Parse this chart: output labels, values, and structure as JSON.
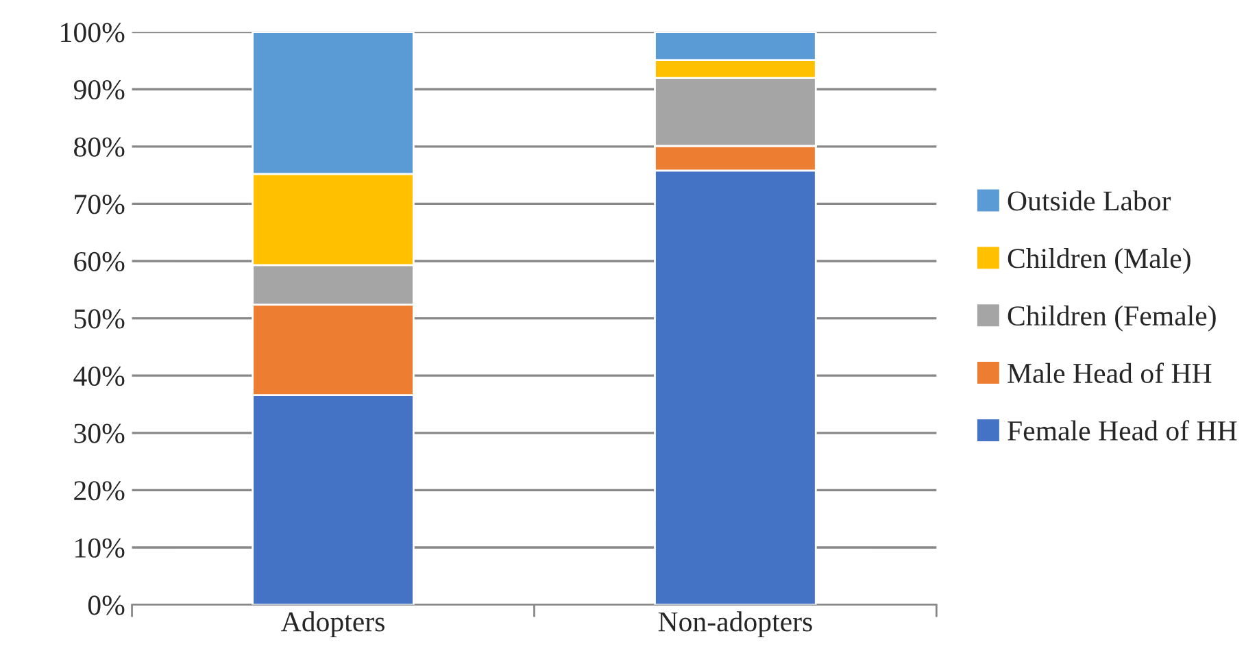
{
  "chart_data": {
    "type": "bar",
    "stacked": true,
    "categories": [
      "Adopters",
      "Non-adopters"
    ],
    "series": [
      {
        "name": "Female Head of HH",
        "color": "#4472c4",
        "values": [
          36.6,
          75.8
        ]
      },
      {
        "name": "Male Head of HH",
        "color": "#ed7d31",
        "values": [
          15.8,
          4.3
        ]
      },
      {
        "name": "Children (Female)",
        "color": "#a5a5a5",
        "values": [
          6.9,
          11.9
        ]
      },
      {
        "name": "Children (Male)",
        "color": "#ffc000",
        "values": [
          15.9,
          3.1
        ]
      },
      {
        "name": "Outside Labor",
        "color": "#5b9bd5",
        "values": [
          24.8,
          4.9
        ]
      }
    ],
    "ylim": [
      0,
      100
    ],
    "yticks": [
      {
        "value": 0,
        "label": "0%"
      },
      {
        "value": 10,
        "label": "10%"
      },
      {
        "value": 20,
        "label": "20%"
      },
      {
        "value": 30,
        "label": "30%"
      },
      {
        "value": 40,
        "label": "40%"
      },
      {
        "value": 50,
        "label": "50%"
      },
      {
        "value": 60,
        "label": "60%"
      },
      {
        "value": 70,
        "label": "70%"
      },
      {
        "value": 80,
        "label": "80%"
      },
      {
        "value": 90,
        "label": "90%"
      },
      {
        "value": 100,
        "label": "100%"
      }
    ],
    "grid": "y",
    "legend": "right"
  }
}
